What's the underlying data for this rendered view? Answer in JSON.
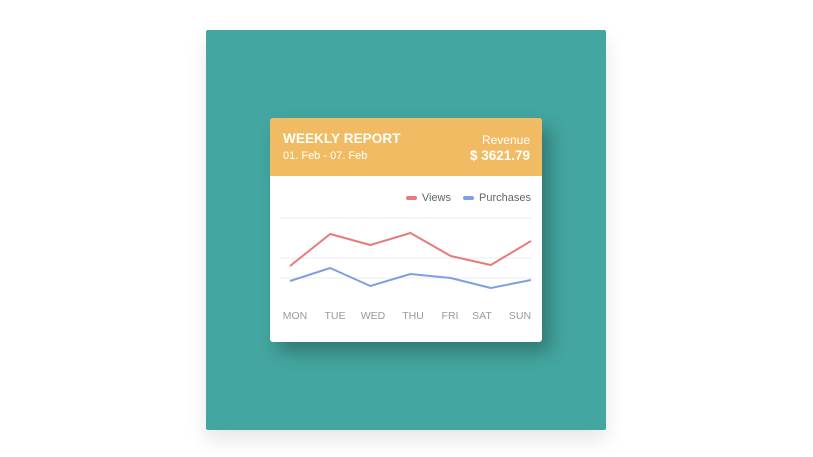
{
  "report": {
    "title": "WEEKLY REPORT",
    "date_range": "01. Feb - 07. Feb",
    "revenue_label": "Revenue",
    "revenue_value": "$ 3621.79"
  },
  "colors": {
    "background_panel": "#44a6a0",
    "header": "#f1bb63",
    "views": "#e87a7a",
    "purchases": "#7ea0e0"
  },
  "chart_data": {
    "type": "line",
    "categories": [
      "MON",
      "TUE",
      "WED",
      "THU",
      "FRI",
      "SAT",
      "SUN"
    ],
    "series": [
      {
        "name": "Views",
        "color": "#e87a7a",
        "values": [
          32,
          64,
          53,
          65,
          42,
          33,
          57
        ]
      },
      {
        "name": "Purchases",
        "color": "#7ea0e0",
        "values": [
          17,
          30,
          12,
          24,
          20,
          10,
          18
        ]
      }
    ],
    "ylim": [
      0,
      80
    ],
    "grid": true,
    "legend_position": "top-right",
    "title": "",
    "xlabel": "",
    "ylabel": ""
  }
}
